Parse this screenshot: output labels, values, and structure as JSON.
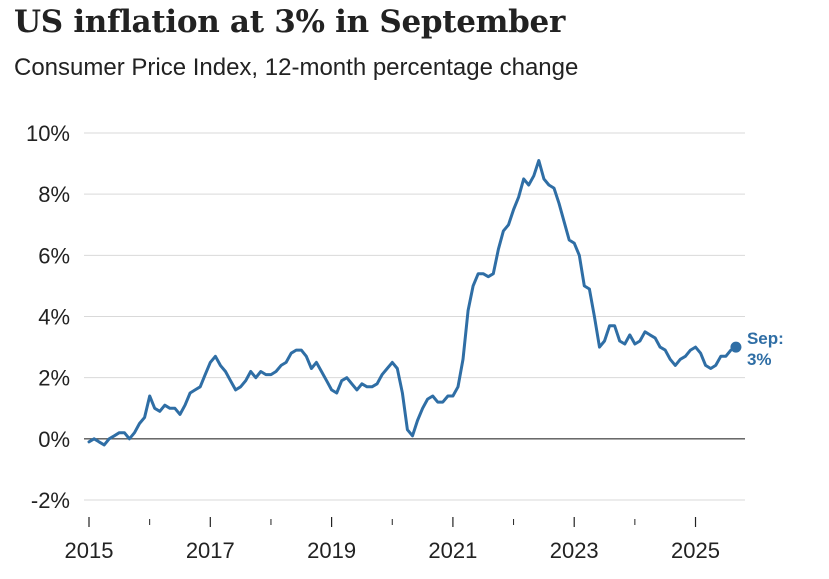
{
  "title": "US inflation at 3% in September",
  "subtitle": "Consumer Price Index, 12-month percentage change",
  "chart_data": {
    "type": "line",
    "title": "US inflation at 3% in September",
    "subtitle": "Consumer Price Index, 12-month percentage change",
    "xlabel": "",
    "ylabel": "",
    "xlim": [
      2015.0,
      2025.75
    ],
    "ylim": [
      -2,
      10
    ],
    "y_ticks": [
      -2,
      0,
      2,
      4,
      6,
      8,
      10
    ],
    "y_tick_labels": [
      "-2%",
      "0%",
      "2%",
      "4%",
      "6%",
      "8%",
      "10%"
    ],
    "x_ticks": [
      2015,
      2017,
      2019,
      2021,
      2023,
      2025
    ],
    "x_tick_labels": [
      "2015",
      "2017",
      "2019",
      "2021",
      "2023",
      "2025"
    ],
    "grid": true,
    "colors": {
      "line": "#2f6ea5",
      "grid": "#d9d9d9",
      "zero": "#555555"
    },
    "series": [
      {
        "name": "CPI 12-month change",
        "start": "2015-01",
        "frequency": "monthly",
        "values": [
          -0.1,
          0.0,
          -0.1,
          -0.2,
          0.0,
          0.1,
          0.2,
          0.2,
          0.0,
          0.2,
          0.5,
          0.7,
          1.4,
          1.0,
          0.9,
          1.1,
          1.0,
          1.0,
          0.8,
          1.1,
          1.5,
          1.6,
          1.7,
          2.1,
          2.5,
          2.7,
          2.4,
          2.2,
          1.9,
          1.6,
          1.7,
          1.9,
          2.2,
          2.0,
          2.2,
          2.1,
          2.1,
          2.2,
          2.4,
          2.5,
          2.8,
          2.9,
          2.9,
          2.7,
          2.3,
          2.5,
          2.2,
          1.9,
          1.6,
          1.5,
          1.9,
          2.0,
          1.8,
          1.6,
          1.8,
          1.7,
          1.7,
          1.8,
          2.1,
          2.3,
          2.5,
          2.3,
          1.5,
          0.3,
          0.1,
          0.6,
          1.0,
          1.3,
          1.4,
          1.2,
          1.2,
          1.4,
          1.4,
          1.7,
          2.6,
          4.2,
          5.0,
          5.4,
          5.4,
          5.3,
          5.4,
          6.2,
          6.8,
          7.0,
          7.5,
          7.9,
          8.5,
          8.3,
          8.6,
          9.1,
          8.5,
          8.3,
          8.2,
          7.7,
          7.1,
          6.5,
          6.4,
          6.0,
          5.0,
          4.9,
          4.0,
          3.0,
          3.2,
          3.7,
          3.7,
          3.2,
          3.1,
          3.4,
          3.1,
          3.2,
          3.5,
          3.4,
          3.3,
          3.0,
          2.9,
          2.6,
          2.4,
          2.6,
          2.7,
          2.9,
          3.0,
          2.8,
          2.4,
          2.3,
          2.4,
          2.7,
          2.7,
          2.9,
          3.0
        ]
      }
    ],
    "annotations": [
      {
        "label_line1": "Sep:",
        "label_line2": "3%",
        "x": 2025.67,
        "y": 3.0
      }
    ]
  }
}
